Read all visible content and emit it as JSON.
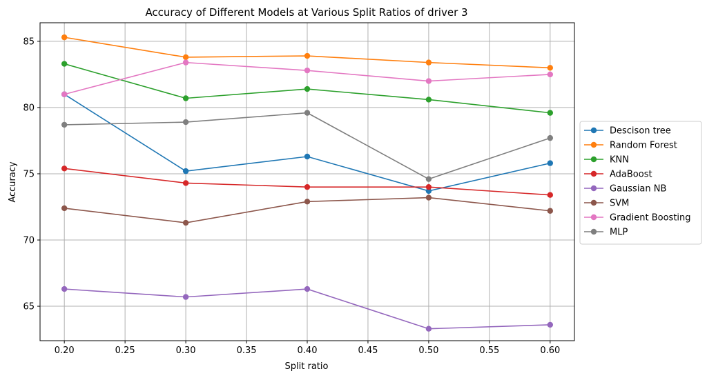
{
  "chart_data": {
    "type": "line",
    "title": "Accuracy of Different Models at Various Split Ratios of driver 3",
    "xlabel": "Split ratio",
    "ylabel": "Accuracy",
    "x": [
      0.2,
      0.3,
      0.4,
      0.5,
      0.6
    ],
    "xlim": [
      0.18,
      0.62
    ],
    "ylim": [
      62.4,
      86.4
    ],
    "xticks": [
      "0.20",
      "0.25",
      "0.30",
      "0.35",
      "0.40",
      "0.45",
      "0.50",
      "0.55",
      "0.60"
    ],
    "yticks": [
      "65",
      "70",
      "75",
      "80",
      "85"
    ],
    "grid": true,
    "legend_position": "center-right-outside",
    "series": [
      {
        "name": "Descison tree",
        "color": "#1f77b4",
        "values": [
          81.0,
          75.2,
          76.3,
          73.7,
          75.8
        ]
      },
      {
        "name": "Random Forest",
        "color": "#ff7f0e",
        "values": [
          85.3,
          83.8,
          83.9,
          83.4,
          83.0
        ]
      },
      {
        "name": "KNN",
        "color": "#2ca02c",
        "values": [
          83.3,
          80.7,
          81.4,
          80.6,
          79.6
        ]
      },
      {
        "name": "AdaBoost",
        "color": "#d62728",
        "values": [
          75.4,
          74.3,
          74.0,
          74.0,
          73.4
        ]
      },
      {
        "name": "Gaussian NB",
        "color": "#9467bd",
        "values": [
          66.3,
          65.7,
          66.3,
          63.3,
          63.6
        ]
      },
      {
        "name": "SVM",
        "color": "#8c564b",
        "values": [
          72.4,
          71.3,
          72.9,
          73.2,
          72.2
        ]
      },
      {
        "name": "Gradient Boosting",
        "color": "#e377c2",
        "values": [
          81.0,
          83.4,
          82.8,
          82.0,
          82.5
        ]
      },
      {
        "name": "MLP",
        "color": "#7f7f7f",
        "values": [
          78.7,
          78.9,
          79.6,
          74.6,
          77.7
        ]
      }
    ]
  }
}
